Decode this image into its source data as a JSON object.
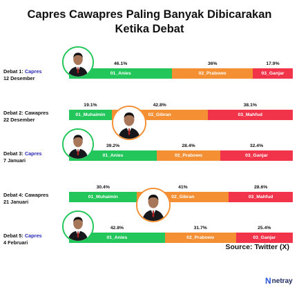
{
  "title_lines": [
    "Capres Cawapres Paling Banyak Dibicarakan",
    "Ketika Debat"
  ],
  "source": "Source: Twitter (X)",
  "brand": "netray",
  "colors": {
    "green": "#22c65a",
    "orange": "#f58f33",
    "red": "#f2344a",
    "accent": "#2b2bb8"
  },
  "chart_data": {
    "type": "bar",
    "orientation": "horizontal-stacked-100",
    "title": "Capres Cawapres Paling Banyak Dibicarakan Ketika Debat",
    "rows": [
      {
        "label_prefix": "Debat 1: ",
        "label_accent": "Capres",
        "label_rest": "",
        "date": "12 Desember",
        "portrait_ring": "green",
        "segments": [
          {
            "name": "01_Anies",
            "value": 46.1,
            "pct": "46.1%",
            "color": "green"
          },
          {
            "name": "02_Prabowo",
            "value": 36,
            "pct": "36%",
            "color": "orange"
          },
          {
            "name": "03_Ganjar",
            "value": 17.9,
            "pct": "17.9%",
            "color": "red"
          }
        ]
      },
      {
        "label_prefix": "Debat 2: Cawapres",
        "label_accent": "",
        "label_rest": "",
        "date": "22 Desember",
        "portrait_ring": "orange",
        "segments": [
          {
            "name": "01_Muhaimin",
            "value": 19.1,
            "pct": "19.1%",
            "color": "green"
          },
          {
            "name": "02_Gibran",
            "value": 42.8,
            "pct": "42.8%",
            "color": "orange"
          },
          {
            "name": "03_Mahfud",
            "value": 38.1,
            "pct": "38.1%",
            "color": "red"
          }
        ]
      },
      {
        "label_prefix": "Debat 3: ",
        "label_accent": "Capres",
        "label_rest": "",
        "date": "7 Januari",
        "portrait_ring": "green",
        "segments": [
          {
            "name": "01_Anies",
            "value": 39.2,
            "pct": "39.2%",
            "color": "green"
          },
          {
            "name": "02_Prabowo",
            "value": 28.4,
            "pct": "28.4%",
            "color": "orange"
          },
          {
            "name": "03_Ganjar",
            "value": 32.4,
            "pct": "32.4%",
            "color": "red"
          }
        ]
      },
      {
        "label_prefix": "Debat 4: Cawapres",
        "label_accent": "",
        "label_rest": "",
        "date": "21 Januari",
        "portrait_ring": "orange",
        "segments": [
          {
            "name": "01_Muhaimin",
            "value": 30.4,
            "pct": "30.4%",
            "color": "green"
          },
          {
            "name": "02_Gibran",
            "value": 41,
            "pct": "41%",
            "color": "orange"
          },
          {
            "name": "03_Mahfud",
            "value": 28.6,
            "pct": "28.6%",
            "color": "red"
          }
        ]
      },
      {
        "label_prefix": "Debat 5: ",
        "label_accent": "Capres",
        "label_rest": "",
        "date": "4 Februari",
        "portrait_ring": "green",
        "segments": [
          {
            "name": "01_Anies",
            "value": 42.8,
            "pct": "42.8%",
            "color": "green"
          },
          {
            "name": "02_Prabowo",
            "value": 31.7,
            "pct": "31.7%",
            "color": "orange"
          },
          {
            "name": "03_Ganjar",
            "value": 25.4,
            "pct": "25.4%",
            "color": "red"
          }
        ]
      }
    ]
  }
}
